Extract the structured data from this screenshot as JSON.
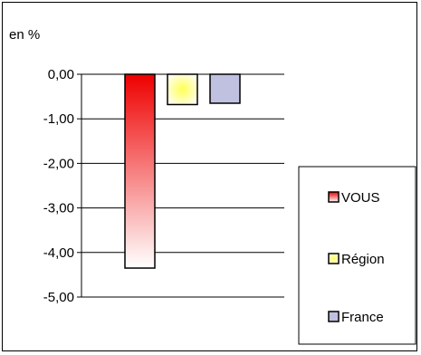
{
  "chart_data": {
    "type": "bar",
    "unit_label": "en %",
    "categories": [
      "VOUS",
      "Région",
      "France"
    ],
    "values": [
      -4.35,
      -0.68,
      -0.65
    ],
    "ylim": [
      -5,
      0
    ],
    "yticks": [
      0,
      -1,
      -2,
      -3,
      -4,
      -5
    ],
    "ytick_labels": [
      "0,00",
      "-1,00",
      "-2,00",
      "-3,00",
      "-4,00",
      "-5,00"
    ],
    "grid": true,
    "legend": {
      "placement": "right",
      "entries": [
        "VOUS",
        "Région",
        "France"
      ]
    },
    "colors": {
      "VOUS_top": "#ee0000",
      "VOUS_bottom": "#ffffff",
      "Region_center": "#ffff66",
      "Region_edge": "#fffff0",
      "France": "#c0c0e0"
    }
  }
}
